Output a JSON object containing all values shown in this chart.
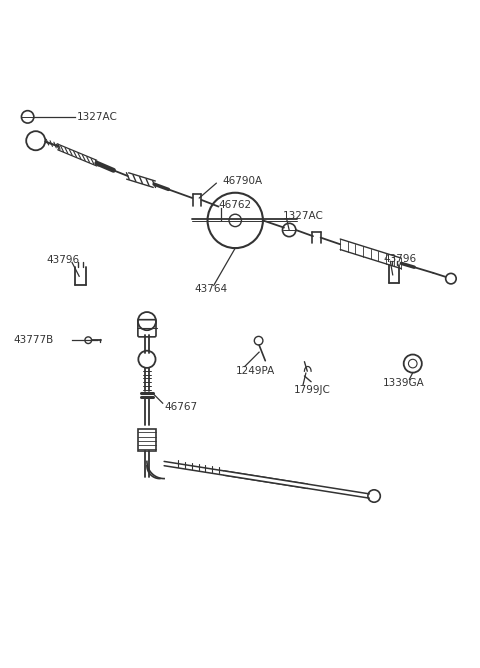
{
  "bg_color": "#ffffff",
  "line_color": "#333333",
  "labels": {
    "1327AC_top": "1327AC",
    "46790A": "46790A",
    "46762": "46762",
    "1327AC_mid": "1327AC",
    "43796_left": "43796",
    "43764": "43764",
    "43796_right": "43796",
    "43777B": "43777B",
    "1249PA": "1249PA",
    "1799JC": "1799JC",
    "1339GA": "1339GA",
    "46767": "46767"
  }
}
